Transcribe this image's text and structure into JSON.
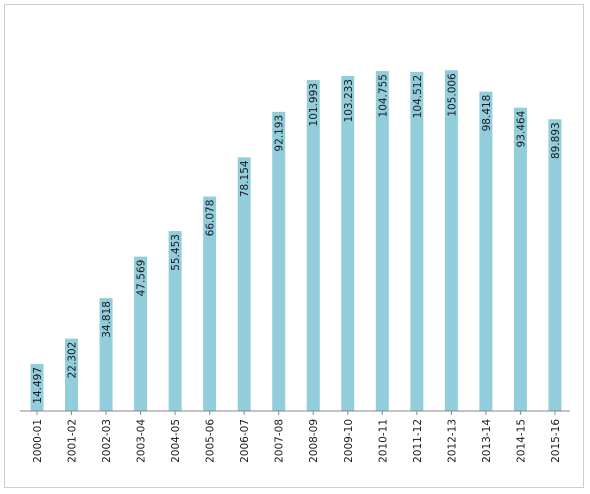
{
  "chart_data": {
    "type": "bar",
    "title": "",
    "xlabel": "",
    "ylabel": "",
    "categories": [
      "2000-01",
      "2001-02",
      "2002-03",
      "2003-04",
      "2004-05",
      "2005-06",
      "2006-07",
      "2007-08",
      "2008-09",
      "2009-10",
      "2010-11",
      "2011-12",
      "2012-13",
      "2013-14",
      "2014-15",
      "2015-16"
    ],
    "values": [
      14.497,
      22.302,
      34.818,
      47.569,
      55.453,
      66.078,
      78.154,
      92.193,
      101.993,
      103.233,
      104.755,
      104.512,
      105.006,
      98.418,
      93.464,
      89.893
    ],
    "value_labels": [
      "14.497",
      "22.302",
      "34.818",
      "47.569",
      "55.453",
      "66.078",
      "78.154",
      "92.193",
      "101.993",
      "103.233",
      "104.755",
      "104.512",
      "105.006",
      "98.418",
      "93.464",
      "89.893"
    ],
    "ylim": [
      0,
      107.5
    ],
    "grid": false,
    "legend": "none",
    "bar_color": "#92cddc",
    "axis_color": "#888888"
  }
}
